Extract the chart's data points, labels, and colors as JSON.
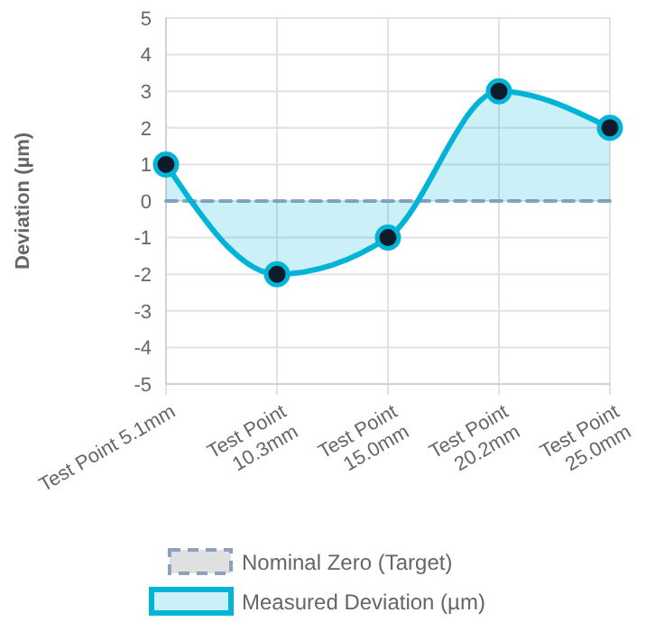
{
  "chart_data": {
    "type": "line",
    "ylabel": "Deviation (µm)",
    "categories": [
      "Test Point 5.1mm",
      "Test Point 10.3mm",
      "Test Point 15.0mm",
      "Test Point 20.2mm",
      "Test Point 25.0mm"
    ],
    "series": [
      {
        "name": "Nominal Zero (Target)",
        "color": "#8fa0bf",
        "values": [
          0,
          0,
          0,
          0,
          0
        ],
        "line_style": "dashed",
        "marker": "none"
      },
      {
        "name": "Measured Deviation (µm)",
        "type": "area",
        "color": "#00b4d8",
        "values": [
          1,
          -2,
          -1,
          3,
          2
        ],
        "marker": "circle",
        "line_style": "solid"
      }
    ],
    "ylim": [
      -5,
      5
    ],
    "yticks": [
      -5,
      -4,
      -3,
      -2,
      -1,
      0,
      1,
      2,
      3,
      4,
      5
    ],
    "grid": true,
    "legend": "bottom"
  }
}
